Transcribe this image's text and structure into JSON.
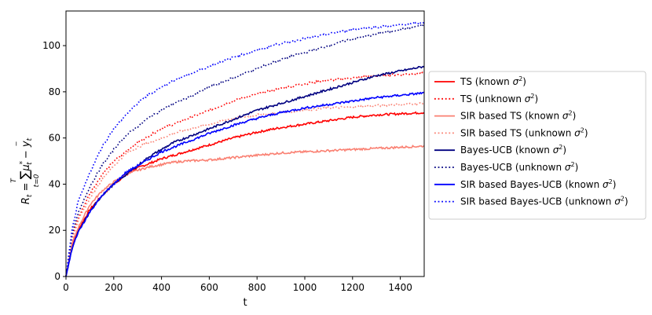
{
  "chart_data": {
    "type": "line",
    "xlabel": "t",
    "ylabel_tex": "R_t = Σ_{t=0}^{T} μ*_t − ȳ_t",
    "ylabel": {
      "main": "R",
      "sub_t": "t",
      "eq": " = ",
      "sum": "∑",
      "sup_T": "T",
      "sub_t0": "t=0",
      "mu": "μ",
      "mu_sup": "*",
      "mu_sub": "t",
      "minus": " − ",
      "ybar": "y",
      "ybar_bar": "‾",
      "ybar_sub": "t"
    },
    "xlim": [
      0,
      1500
    ],
    "ylim": [
      0,
      115
    ],
    "xticks": [
      0,
      200,
      400,
      600,
      800,
      1000,
      1200,
      1400
    ],
    "yticks": [
      0,
      20,
      40,
      60,
      80,
      100
    ],
    "grid": false,
    "legend_position": "outside-right",
    "x": [
      0,
      25,
      50,
      100,
      150,
      200,
      250,
      300,
      350,
      400,
      450,
      500,
      600,
      700,
      800,
      900,
      1000,
      1100,
      1200,
      1300,
      1400,
      1500
    ],
    "series": [
      {
        "name": "TS (known σ²)",
        "label_main": "TS (known ",
        "color": "#ff0000",
        "style": "solid",
        "values": [
          0,
          13,
          20,
          29,
          35,
          40,
          44,
          47,
          49,
          51,
          52.5,
          54,
          57,
          60,
          62.5,
          64.5,
          66,
          67.5,
          69,
          70,
          70.5,
          71
        ]
      },
      {
        "name": "TS (unknown σ²)",
        "label_main": "TS (unknown ",
        "color": "#ff0000",
        "style": "dotted",
        "values": [
          0,
          17,
          25,
          36,
          44,
          50,
          54,
          58,
          61,
          64,
          66,
          68,
          72,
          76,
          79,
          81.5,
          83.5,
          85,
          86,
          87,
          87.5,
          88
        ]
      },
      {
        "name": "SIR based TS (known σ²)",
        "label_main": "SIR based TS (known ",
        "color": "#fa8072",
        "style": "solid",
        "values": [
          0,
          14,
          21,
          31,
          37,
          41,
          44,
          46,
          47.5,
          48.5,
          49.5,
          50,
          50.5,
          51.5,
          52.5,
          53.5,
          54,
          54.5,
          55,
          55.5,
          56,
          56.5
        ]
      },
      {
        "name": "SIR based TS (unknown σ²)",
        "label_main": "SIR based TS (unknown ",
        "color": "#fa8072",
        "style": "dotted",
        "values": [
          0,
          16,
          24,
          34,
          42,
          48,
          53,
          56,
          58,
          60,
          62,
          63.5,
          66,
          68.5,
          70,
          71,
          72,
          73,
          73.5,
          74,
          74.5,
          75
        ]
      },
      {
        "name": "Bayes-UCB (known σ²)",
        "label_main": "Bayes-UCB (known ",
        "color": "#000080",
        "style": "solid",
        "values": [
          0,
          12,
          19,
          28,
          35,
          40,
          44,
          48,
          52,
          55,
          58,
          60,
          64,
          68,
          72,
          75,
          78,
          81,
          84,
          87,
          89,
          91
        ]
      },
      {
        "name": "Bayes-UCB (unknown σ²)",
        "label_main": "Bayes-UCB (unknown ",
        "color": "#000080",
        "style": "dotted",
        "values": [
          0,
          18,
          27,
          39,
          48,
          55,
          61,
          65,
          69,
          72,
          75,
          77,
          82,
          86,
          90,
          94,
          97,
          100,
          103,
          105,
          107,
          109
        ]
      },
      {
        "name": "SIR based Bayes-UCB (known σ²)",
        "label_main": "SIR based Bayes-UCB (known ",
        "color": "#0000ff",
        "style": "solid",
        "values": [
          0,
          12,
          19,
          28,
          35,
          40,
          45,
          48,
          51,
          54,
          56,
          58,
          62,
          65.5,
          68.5,
          71,
          73,
          74.5,
          76,
          77.5,
          78.5,
          79.5
        ]
      },
      {
        "name": "SIR based Bayes-UCB (unknown σ²)",
        "label_main": "SIR based Bayes-UCB (unknown ",
        "color": "#0000ff",
        "style": "dotted",
        "values": [
          0,
          20,
          32,
          45,
          56,
          64,
          70,
          75,
          79,
          82,
          85,
          87,
          91,
          95,
          98,
          101,
          103,
          105,
          107,
          108,
          109,
          110
        ]
      }
    ]
  }
}
